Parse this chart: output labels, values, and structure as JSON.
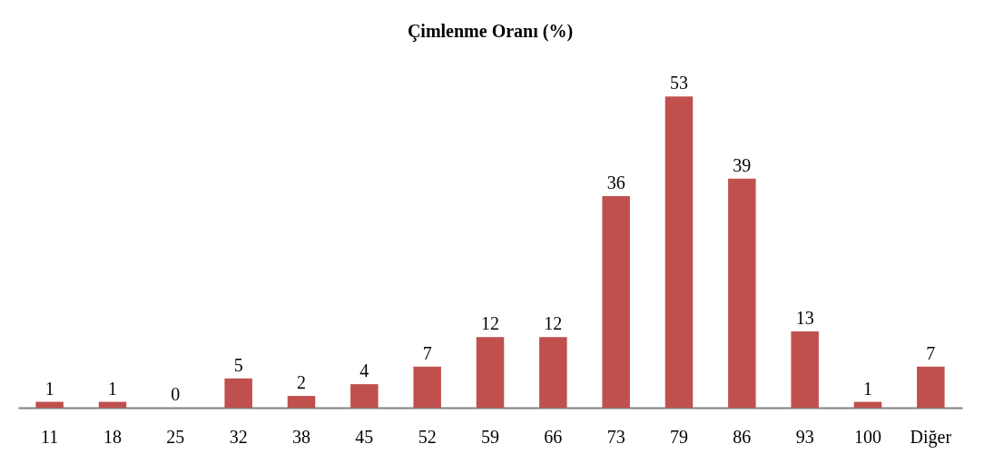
{
  "chart_data": {
    "type": "bar",
    "title": "Çimlenme Oranı (%)",
    "categories": [
      "11",
      "18",
      "25",
      "32",
      "38",
      "45",
      "52",
      "59",
      "66",
      "73",
      "79",
      "86",
      "93",
      "100",
      "Diğer"
    ],
    "values": [
      1,
      1,
      0,
      5,
      2,
      4,
      7,
      12,
      12,
      36,
      53,
      39,
      13,
      1,
      7
    ],
    "color": "#c0504d",
    "data_labels": true
  }
}
